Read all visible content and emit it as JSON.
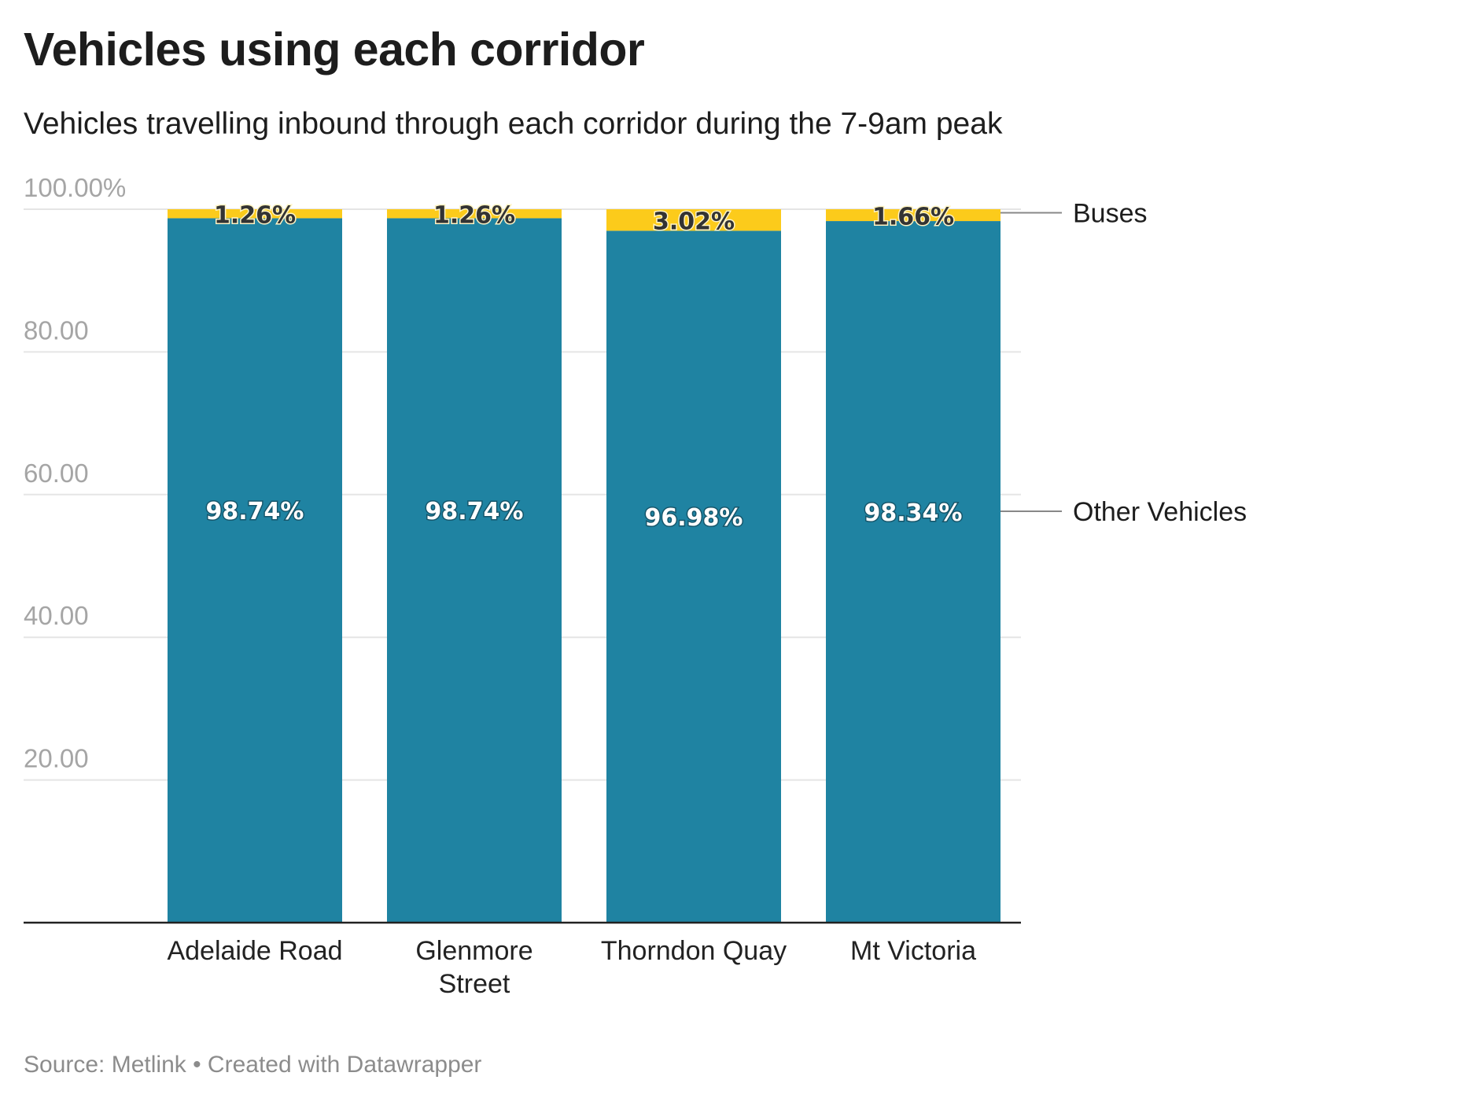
{
  "header": {
    "title": "Vehicles using each corridor",
    "subtitle": "Vehicles travelling inbound through each corridor during the 7-9am peak"
  },
  "footer": {
    "source": "Source: Metlink • Created with Datawrapper"
  },
  "colors": {
    "other_vehicles": "#1f83a2",
    "buses": "#fccb1b",
    "gridline": "#e5e5e5",
    "baseline": "#222222"
  },
  "chart_data": {
    "type": "bar",
    "stacked": true,
    "orientation": "vertical",
    "title": "Vehicles using each corridor",
    "subtitle": "Vehicles travelling inbound through each corridor during the 7-9am peak",
    "categories": [
      "Adelaide Road",
      "Glenmore Street",
      "Thorndon Quay",
      "Mt Victoria"
    ],
    "series": [
      {
        "name": "Other Vehicles",
        "values": [
          98.74,
          98.74,
          96.98,
          98.34
        ],
        "labels": [
          "98.74%",
          "98.74%",
          "96.98%",
          "98.34%"
        ]
      },
      {
        "name": "Buses",
        "values": [
          1.26,
          1.26,
          3.02,
          1.66
        ],
        "labels": [
          "1.26%",
          "1.26%",
          "3.02%",
          "1.66%"
        ]
      }
    ],
    "y_ticks": [
      {
        "value": 100,
        "label": "100.00%"
      },
      {
        "value": 80,
        "label": "80.00"
      },
      {
        "value": 60,
        "label": "60.00"
      },
      {
        "value": 40,
        "label": "40.00"
      },
      {
        "value": 20,
        "label": "20.00"
      }
    ],
    "ylim": [
      0,
      100
    ],
    "grid": true,
    "legend": "right, inline labels",
    "source": "Source: Metlink • Created with Datawrapper"
  }
}
